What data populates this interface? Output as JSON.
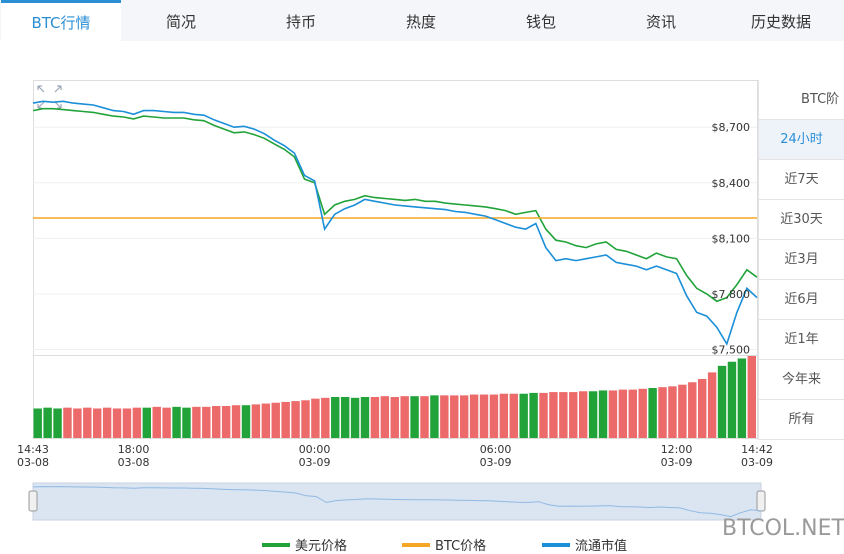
{
  "tabs": [
    "BTC行情",
    "简况",
    "持币",
    "热度",
    "钱包",
    "资讯",
    "历史数据"
  ],
  "side_menu": [
    "BTC阶",
    "24小时",
    "近7天",
    "近30天",
    "近3月",
    "近6月",
    "近1年",
    "今年来",
    "所有"
  ],
  "watermark": "BTCOL.NET",
  "chart_data": {
    "type": "line",
    "categories": [
      "14:43\n03-08",
      null,
      null,
      null,
      null,
      null,
      null,
      null,
      null,
      null,
      "18:00\n03-08",
      null,
      null,
      null,
      null,
      null,
      null,
      null,
      null,
      null,
      null,
      null,
      null,
      null,
      null,
      null,
      null,
      null,
      "00:00\n03-09",
      null,
      null,
      null,
      null,
      null,
      null,
      null,
      null,
      null,
      null,
      null,
      null,
      null,
      null,
      null,
      null,
      null,
      "06:00\n03-09",
      null,
      null,
      null,
      null,
      null,
      null,
      null,
      null,
      null,
      null,
      null,
      null,
      null,
      null,
      null,
      null,
      null,
      "12:00\n03-09",
      null,
      null,
      null,
      null,
      null,
      null,
      null,
      "14:42\n03-09"
    ],
    "series": [
      {
        "name": "美元价格",
        "color": "#22a33a",
        "values": [
          8790,
          8800,
          8800,
          8795,
          8790,
          8785,
          8780,
          8770,
          8760,
          8755,
          8745,
          8760,
          8755,
          8750,
          8750,
          8750,
          8740,
          8735,
          8710,
          8690,
          8670,
          8675,
          8660,
          8640,
          8610,
          8580,
          8540,
          8420,
          8400,
          8230,
          8280,
          8300,
          8310,
          8330,
          8320,
          8315,
          8310,
          8305,
          8310,
          8300,
          8300,
          8290,
          8285,
          8280,
          8275,
          8270,
          8260,
          8250,
          8230,
          8240,
          8250,
          8150,
          8090,
          8080,
          8060,
          8050,
          8070,
          8080,
          8040,
          8030,
          8010,
          7990,
          8020,
          8000,
          7990,
          7900,
          7830,
          7800,
          7760,
          7780,
          7850,
          7930,
          7890
        ]
      },
      {
        "name": "BTC价格",
        "color": "#f5a623",
        "values": [
          8210,
          8210,
          8210,
          8210,
          8210,
          8210,
          8210,
          8210,
          8210,
          8210,
          8210,
          8210,
          8210,
          8210,
          8210,
          8210,
          8210,
          8210,
          8210,
          8210,
          8210,
          8210,
          8210,
          8210,
          8210,
          8210,
          8210,
          8210,
          8210,
          8210,
          8210,
          8210,
          8210,
          8210,
          8210,
          8210,
          8210,
          8210,
          8210,
          8210,
          8210,
          8210,
          8210,
          8210,
          8210,
          8210,
          8210,
          8210,
          8210,
          8210,
          8210,
          8210,
          8210,
          8210,
          8210,
          8210,
          8210,
          8210,
          8210,
          8210,
          8210,
          8210,
          8210,
          8210,
          8210,
          8210,
          8210,
          8210,
          8210,
          8210,
          8210,
          8210,
          8210
        ]
      },
      {
        "name": "流通市值",
        "color": "#1b8fd8",
        "values": [
          8830,
          8840,
          8835,
          8840,
          8830,
          8825,
          8820,
          8805,
          8790,
          8785,
          8770,
          8790,
          8790,
          8785,
          8780,
          8780,
          8770,
          8765,
          8740,
          8720,
          8700,
          8705,
          8690,
          8665,
          8630,
          8600,
          8560,
          8440,
          8410,
          8150,
          8230,
          8260,
          8280,
          8310,
          8300,
          8290,
          8280,
          8275,
          8270,
          8265,
          8260,
          8255,
          8245,
          8240,
          8230,
          8220,
          8200,
          8180,
          8160,
          8150,
          8180,
          8050,
          7980,
          7990,
          7980,
          7990,
          8000,
          8010,
          7970,
          7960,
          7950,
          7930,
          7950,
          7930,
          7910,
          7790,
          7700,
          7680,
          7620,
          7530,
          7700,
          7830,
          7780
        ]
      }
    ],
    "volume": {
      "up_color": "#22a33a",
      "down_color": "#ec6a6a",
      "ylim": [
        0,
        100
      ],
      "values": [
        36,
        37,
        36,
        37,
        36,
        37,
        36,
        37,
        36,
        36,
        37,
        37,
        38,
        37,
        38,
        37,
        38,
        38,
        39,
        39,
        40,
        40,
        41,
        42,
        43,
        44,
        45,
        46,
        48,
        49,
        50,
        50,
        49,
        50,
        50,
        51,
        50,
        51,
        51,
        51,
        52,
        52,
        52,
        52,
        53,
        53,
        53,
        54,
        54,
        54,
        55,
        55,
        56,
        56,
        56,
        57,
        57,
        58,
        58,
        59,
        59,
        60,
        61,
        62,
        63,
        65,
        68,
        72,
        80,
        88,
        93,
        97,
        100
      ]
    },
    "ylim": [
      7470,
      8955
    ],
    "yticks": [
      {
        "value": 7500,
        "label": "$7,500"
      },
      {
        "value": 7800,
        "label": "$7,800"
      },
      {
        "value": 8100,
        "label": "$8,100"
      },
      {
        "value": 8400,
        "label": "$8,400"
      },
      {
        "value": 8700,
        "label": "$8,700"
      }
    ],
    "grid": true
  }
}
